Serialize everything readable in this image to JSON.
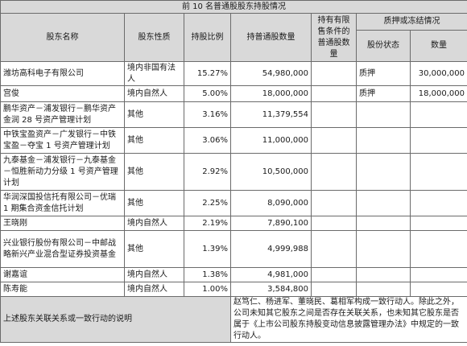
{
  "table": {
    "title": "前 10 名普通股股东持股情况",
    "headers": {
      "name": "股东名称",
      "nature": "股东性质",
      "ratio": "持股比例",
      "shares": "持普通股数量",
      "restricted": "持有有限售条件的普通股数量",
      "pledge_group": "质押或冻结情况",
      "pledge_status": "股份状态",
      "pledge_qty": "数量"
    },
    "rows": [
      {
        "name": "潍坊高科电子有限公司",
        "nature": "境内非国有法人",
        "ratio": "15.27%",
        "shares": "54,980,000",
        "restricted": "",
        "status": "质押",
        "qty": "30,000,000"
      },
      {
        "name": "宫俊",
        "nature": "境内自然人",
        "ratio": "5.00%",
        "shares": "18,000,000",
        "restricted": "",
        "status": "质押",
        "qty": "18,000,000"
      },
      {
        "name": "鹏华资产－浦发银行－鹏华资产金润 28 号资产管理计划",
        "nature": "其他",
        "ratio": "3.16%",
        "shares": "11,379,554",
        "restricted": "",
        "status": "",
        "qty": ""
      },
      {
        "name": "中铁宝盈资产－广发银行－中铁宝盈－夺宝 1 号资产管理计划",
        "nature": "其他",
        "ratio": "3.06%",
        "shares": "11,000,000",
        "restricted": "",
        "status": "",
        "qty": ""
      },
      {
        "name": "九泰基金－浦发银行－九泰基金－恒胜新动力分级 1 号资产管理计划",
        "nature": "其他",
        "ratio": "2.92%",
        "shares": "10,500,000",
        "restricted": "",
        "status": "",
        "qty": ""
      },
      {
        "name": "华润深国投信托有限公司－优瑞 1 期集合资金信托计划",
        "nature": "其他",
        "ratio": "2.25%",
        "shares": "8,090,000",
        "restricted": "",
        "status": "",
        "qty": ""
      },
      {
        "name": "王晓刚",
        "nature": "境内自然人",
        "ratio": "2.19%",
        "shares": "7,890,100",
        "restricted": "",
        "status": "",
        "qty": ""
      },
      {
        "name": "兴业银行股份有限公司－中邮战略新兴产业混合型证券投资基金",
        "nature": "其他",
        "ratio": "1.39%",
        "shares": "4,999,988",
        "restricted": "",
        "status": "",
        "qty": ""
      },
      {
        "name": "谢嘉谊",
        "nature": "境内自然人",
        "ratio": "1.38%",
        "shares": "4,981,000",
        "restricted": "",
        "status": "",
        "qty": ""
      },
      {
        "name": "陈寿能",
        "nature": "境内自然人",
        "ratio": "1.00%",
        "shares": "3,584,800",
        "restricted": "",
        "status": "",
        "qty": ""
      }
    ],
    "footer": {
      "label": "上述股东关联关系或一致行动的说明",
      "text": "赵笃仁、杨进军、董晓民、葛相军构成一致行动人。除此之外，公司未知其它股东之间是否存在关联关系，也未知其它股东是否属于《上市公司股东持股变动信息披露管理办法》中规定的一致行动人。"
    }
  }
}
